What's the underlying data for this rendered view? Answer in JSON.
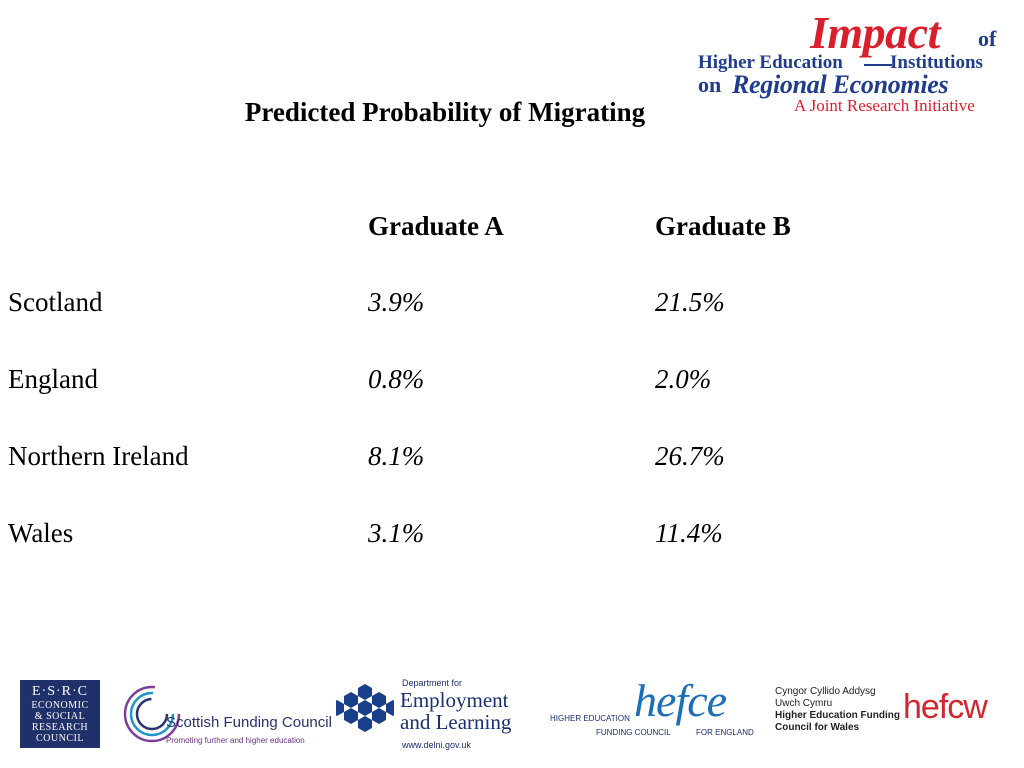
{
  "header_logo": {
    "impact": "Impact",
    "of": "of",
    "line1_left": "Higher Education",
    "line1_right": "Institutions",
    "line2_left": "on",
    "line2_right": "Regional Economies",
    "line3": "A Joint Research Initiative",
    "colors": {
      "red": "#d91f2b",
      "blue": "#1f3d8c"
    }
  },
  "title": "Predicted Probability of Migrating",
  "table": {
    "columns": [
      "Graduate A",
      "Graduate B"
    ],
    "rows": [
      {
        "label": "Scotland",
        "a": "3.9%",
        "b": "21.5%"
      },
      {
        "label": "England",
        "a": "0.8%",
        "b": "2.0%"
      },
      {
        "label": "Northern Ireland",
        "a": "8.1%",
        "b": "26.7%"
      },
      {
        "label": "Wales",
        "a": "3.1%",
        "b": "11.4%"
      }
    ]
  },
  "footer": {
    "esrc": {
      "line1": "E·S·R·C",
      "line2": "ECONOMIC",
      "line3": "& SOCIAL",
      "line4": "RESEARCH",
      "line5": "COUNCIL"
    },
    "sfc": {
      "name": "Scottish Funding Council",
      "tagline": "Promoting further and higher education"
    },
    "del": {
      "dept": "Department for",
      "line1": "Employment",
      "line2": "and Learning",
      "url": "www.delni.gov.uk"
    },
    "hefce": {
      "word": "hefce",
      "higher_education": "HIGHER EDUCATION",
      "funding_council": "FUNDING COUNCIL",
      "for_england": "FOR ENGLAND"
    },
    "hefcw": {
      "line1": "Cyngor Cyllido Addysg",
      "line2": "Uwch Cymru",
      "line3": "Higher Education Funding",
      "line4": "Council for Wales",
      "word": "hefcw"
    }
  }
}
